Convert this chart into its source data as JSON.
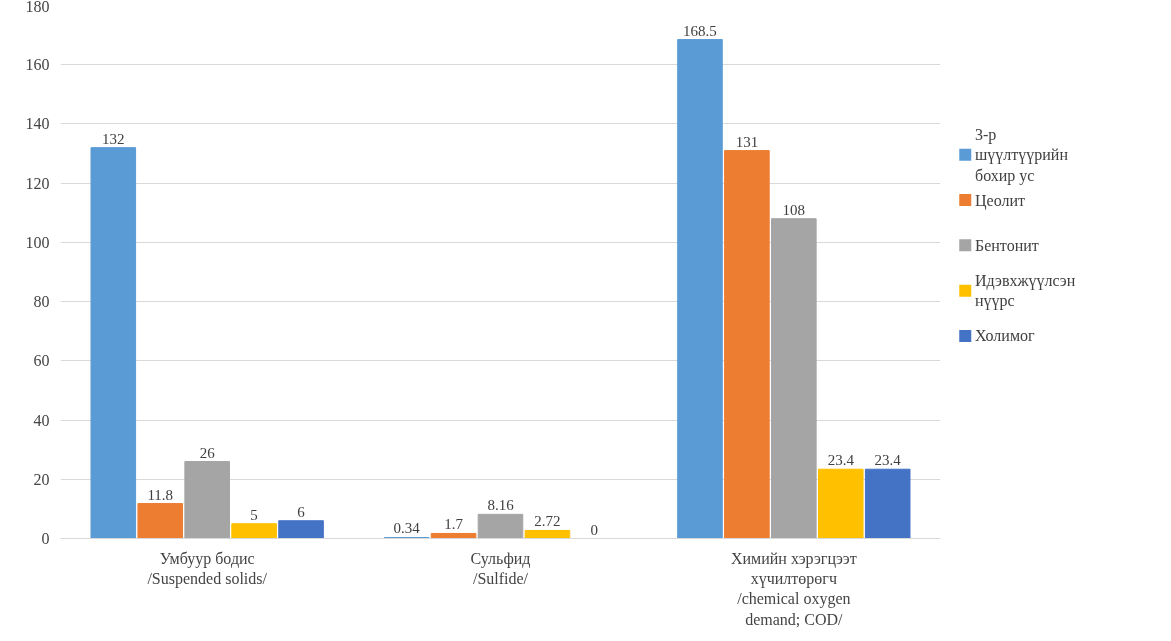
{
  "chart_data": {
    "type": "bar",
    "categories": [
      "Умбуур бодис\n/Suspended solids/",
      "Сульфид\n/Sulfide/",
      "Химийн хэрэгцээт\nхүчилтөрөгч\n/chemical oxygen\ndemand; COD/"
    ],
    "series": [
      {
        "name": "3-р шүүлтүүрийн бохир ус",
        "color": "#5b9bd5",
        "values": [
          132,
          0.34,
          168.5
        ]
      },
      {
        "name": "Цеолит",
        "color": "#ed7d31",
        "values": [
          11.8,
          1.7,
          131
        ]
      },
      {
        "name": "Бентонит",
        "color": "#a5a5a5",
        "values": [
          26,
          8.16,
          108
        ]
      },
      {
        "name": "Идэвхжүүлсэн нүүрс",
        "color": "#ffc000",
        "values": [
          5,
          2.72,
          23.4
        ]
      },
      {
        "name": "Холимог",
        "color": "#4472c4",
        "values": [
          6,
          0,
          23.4
        ]
      }
    ],
    "ylim": [
      0,
      180
    ],
    "yticks": [
      0,
      20,
      40,
      60,
      80,
      100,
      120,
      140,
      160,
      180
    ],
    "grid": "y",
    "legend": "right",
    "data_labels": true
  }
}
